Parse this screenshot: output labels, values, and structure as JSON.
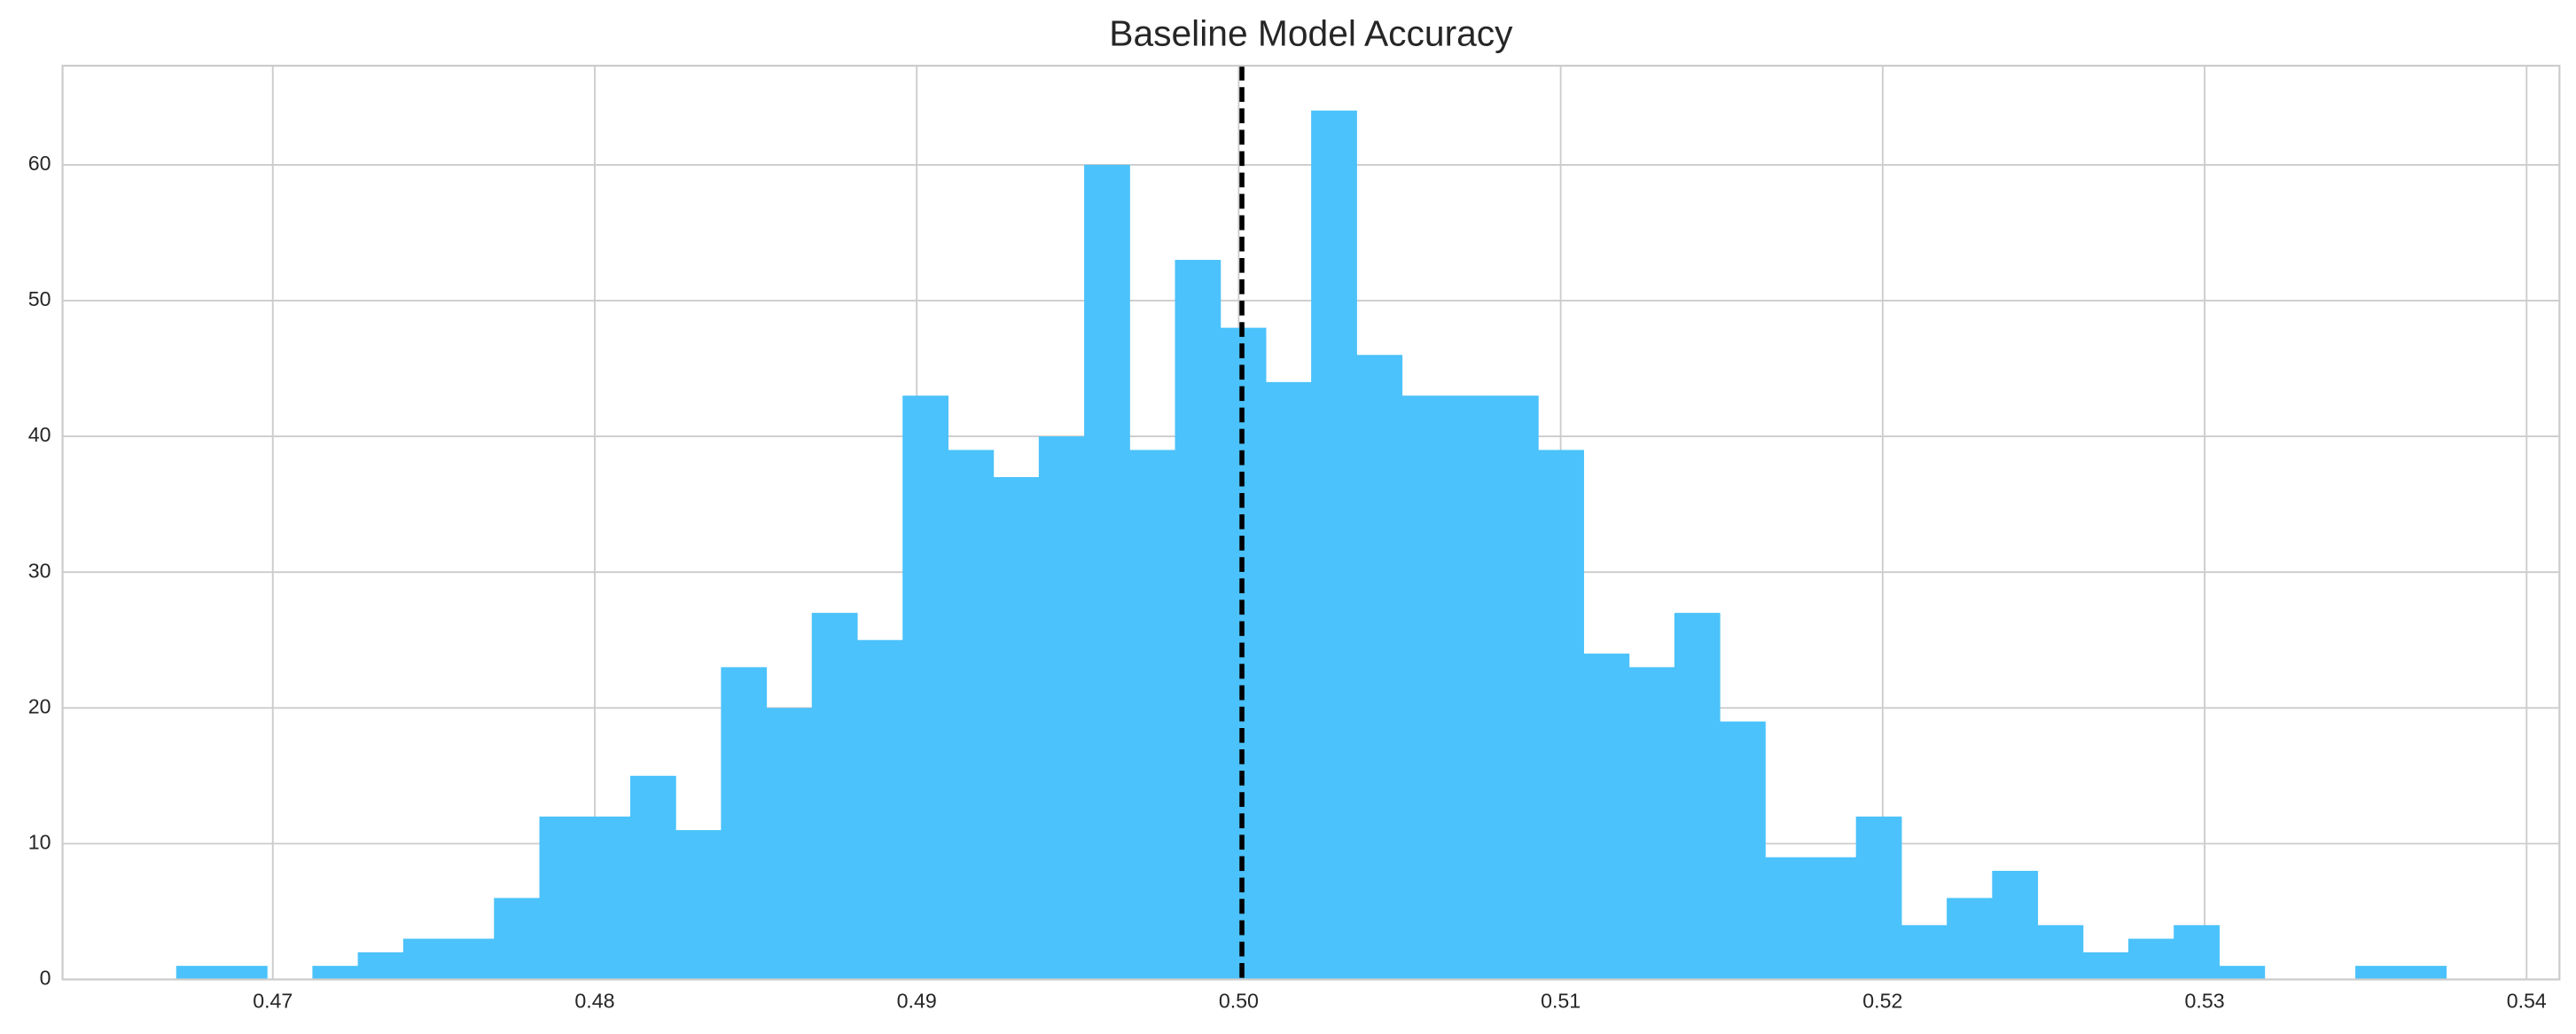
{
  "chart_data": {
    "type": "histogram",
    "title": "Baseline Model Accuracy",
    "bins": [
      0.467,
      0.46841,
      0.46982,
      0.47123,
      0.47264,
      0.47405,
      0.47546,
      0.47687,
      0.47828,
      0.47969,
      0.4811,
      0.48251,
      0.48392,
      0.48533,
      0.48674,
      0.48815,
      0.48956,
      0.49097,
      0.49238,
      0.49379,
      0.4952,
      0.49661,
      0.49802,
      0.49943,
      0.50084,
      0.50225,
      0.50366,
      0.50507,
      0.50648,
      0.50789,
      0.5093,
      0.51071,
      0.51212,
      0.51353,
      0.51494,
      0.51635,
      0.51776,
      0.51917,
      0.52058,
      0.52199,
      0.5234,
      0.52481,
      0.52622,
      0.52763,
      0.52904,
      0.53045,
      0.53186,
      0.53327,
      0.53468,
      0.53609,
      0.5375
    ],
    "values": [
      1,
      1,
      0,
      1,
      2,
      3,
      3,
      6,
      12,
      12,
      15,
      11,
      23,
      20,
      27,
      25,
      43,
      39,
      37,
      40,
      60,
      39,
      53,
      48,
      44,
      64,
      46,
      43,
      43,
      43,
      39,
      24,
      23,
      27,
      19,
      9,
      9,
      12,
      4,
      6,
      8,
      4,
      2,
      3,
      4,
      1,
      0,
      0,
      1,
      1
    ],
    "color": "#4bc2fb",
    "mean_line": {
      "value": 0.5001,
      "color": "#000000"
    },
    "xlim": [
      0.46347,
      0.54102
    ],
    "xticks": [
      0.47,
      0.48,
      0.49,
      {
        "value": 0.5,
        "label": "0.50"
      },
      0.51,
      0.52,
      0.53,
      0.54
    ],
    "ylim": [
      0,
      67.3
    ],
    "yticks": [
      0,
      10,
      20,
      30,
      40,
      50,
      60
    ],
    "grid": true
  }
}
